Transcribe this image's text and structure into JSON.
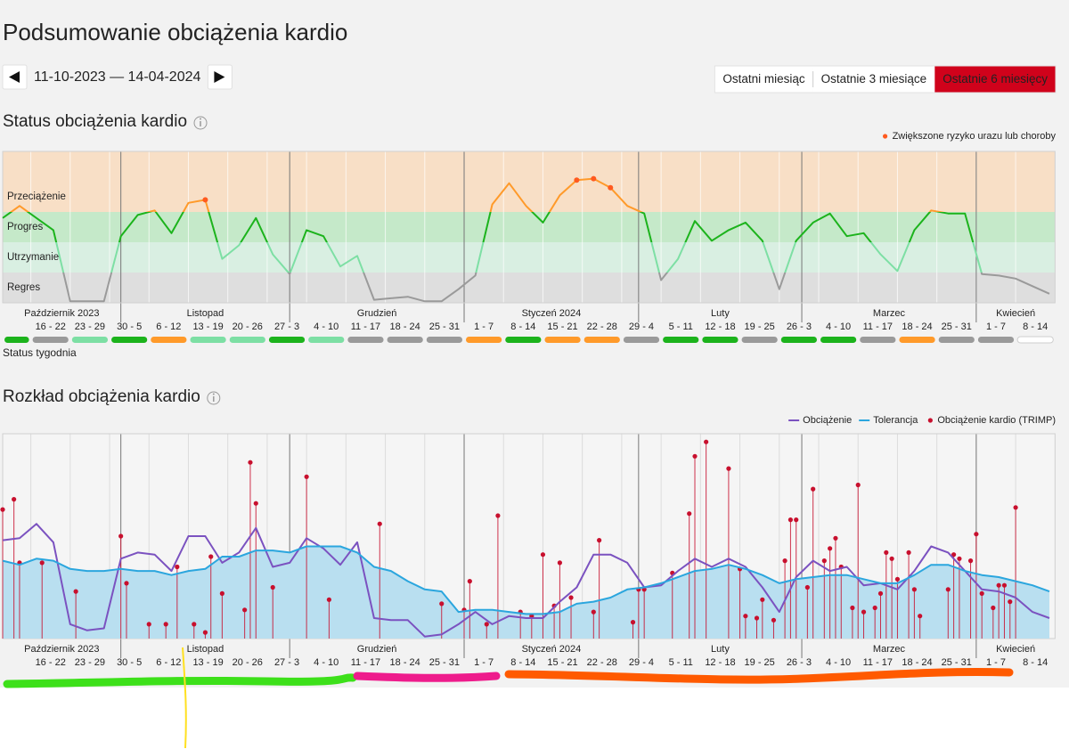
{
  "title": "Podsumowanie obciążenia kardio",
  "date_range": "11-10-2023 — 14-04-2024",
  "range_buttons": [
    "Ostatni miesiąc",
    "Ostatnie 3 miesiące",
    "Ostatnie 6 miesięcy"
  ],
  "active_button": 2,
  "chart_data": [
    {
      "type": "line",
      "title": "Status obciążenia kardio",
      "xlim": [
        "2023-10-11",
        "2024-04-14"
      ],
      "ylim": [
        0,
        100
      ],
      "months": [
        "Październik 2023",
        "Listopad",
        "Grudzień",
        "Styczeń 2024",
        "Luty",
        "Marzec",
        "Kwiecień"
      ],
      "categories": [
        null,
        "16 - 22",
        "23 - 29",
        "30 - 5",
        "6 - 12",
        "13 - 19",
        "20 - 26",
        "27 - 3",
        "4 - 10",
        "11 - 17",
        "18 - 24",
        "25 - 31",
        "1 - 7",
        "8 - 14",
        "15 - 21",
        "22 - 28",
        "29 - 4",
        "5 - 11",
        "12 - 18",
        "19 - 25",
        "26 - 3",
        "4 - 10",
        "11 - 17",
        "18 - 24",
        "25 - 31",
        "1 - 7",
        "8 - 14"
      ],
      "week_status_label": "Status tygodnia",
      "week_status_colors": [
        "#1cb31c",
        "#9a9a9a",
        "#7ddfa4",
        "#1cb31c",
        "#ff9a2a",
        "#7ddfa4",
        "#7ddfa4",
        "#1cb31c",
        "#7ddfa4",
        "#9a9a9a",
        "#9a9a9a",
        "#9a9a9a",
        "#ff9a2a",
        "#1cb31c",
        "#ff9a2a",
        "#ff9a2a",
        "#9a9a9a",
        "#1cb31c",
        "#1cb31c",
        "#9a9a9a",
        "#1cb31c",
        "#1cb31c",
        "#9a9a9a",
        "#ff9a2a",
        "#9a9a9a",
        "#9a9a9a",
        "#ffffff"
      ],
      "bands": [
        {
          "label": "Regres",
          "from": 0,
          "to": 20,
          "color": "#dedede",
          "line_color": "#9a9a9a"
        },
        {
          "label": "Utrzymanie",
          "from": 20,
          "to": 40,
          "color": "#d9efe2",
          "line_color": "#7ddfa4"
        },
        {
          "label": "Progres",
          "from": 40,
          "to": 60,
          "color": "#c5e9c9",
          "line_color": "#1cb31c"
        },
        {
          "label": "Przeciążenie",
          "from": 60,
          "to": 100,
          "color": "#f8dfc6",
          "line_color": "#ff9a2a"
        }
      ],
      "x": [
        "2023-10-11",
        "2023-10-14",
        "2023-10-17",
        "2023-10-20",
        "2023-10-23",
        "2023-10-26",
        "2023-10-29",
        "2023-11-01",
        "2023-11-04",
        "2023-11-07",
        "2023-11-10",
        "2023-11-13",
        "2023-11-16",
        "2023-11-19",
        "2023-11-22",
        "2023-11-25",
        "2023-11-28",
        "2023-12-01",
        "2023-12-04",
        "2023-12-07",
        "2023-12-10",
        "2023-12-13",
        "2023-12-16",
        "2023-12-19",
        "2023-12-22",
        "2023-12-25",
        "2023-12-28",
        "2023-12-31",
        "2024-01-03",
        "2024-01-06",
        "2024-01-09",
        "2024-01-12",
        "2024-01-15",
        "2024-01-18",
        "2024-01-21",
        "2024-01-24",
        "2024-01-27",
        "2024-01-30",
        "2024-02-02",
        "2024-02-05",
        "2024-02-08",
        "2024-02-11",
        "2024-02-14",
        "2024-02-17",
        "2024-02-20",
        "2024-02-23",
        "2024-02-26",
        "2024-02-29",
        "2024-03-03",
        "2024-03-06",
        "2024-03-09",
        "2024-03-12",
        "2024-03-15",
        "2024-03-18",
        "2024-03-21",
        "2024-03-24",
        "2024-03-27",
        "2024-03-30",
        "2024-04-02",
        "2024-04-05",
        "2024-04-08",
        "2024-04-11",
        "2024-04-14"
      ],
      "values": [
        56,
        64,
        56,
        48,
        1,
        1,
        1,
        44,
        58,
        61,
        46,
        66,
        68,
        29,
        38,
        56,
        32,
        19,
        48,
        44,
        24,
        31,
        2,
        3,
        4,
        1,
        1,
        9,
        18,
        65,
        79,
        64,
        53,
        71,
        81,
        82,
        76,
        64,
        59,
        15,
        29,
        54,
        41,
        48,
        53,
        41,
        9,
        41,
        53,
        59,
        44,
        46,
        32,
        21,
        48,
        61,
        59,
        59,
        19,
        18,
        16,
        11,
        6
      ],
      "series": [
        {
          "name": "Zwiększone ryzyko urazu lub choroby",
          "type": "scatter",
          "color": "#ff5a1f",
          "values": [
            null,
            null,
            null,
            null,
            null,
            null,
            null,
            null,
            null,
            null,
            null,
            null,
            68,
            null,
            null,
            null,
            null,
            null,
            null,
            null,
            null,
            null,
            null,
            null,
            null,
            null,
            null,
            null,
            null,
            null,
            null,
            null,
            null,
            null,
            81,
            82,
            76,
            null,
            null,
            null,
            null,
            null,
            null,
            null,
            null,
            null,
            null,
            null,
            null,
            null,
            null,
            null,
            null,
            null,
            null,
            null,
            null,
            null,
            null,
            null,
            null,
            null,
            null
          ]
        }
      ]
    },
    {
      "type": "line",
      "title": "Rozkład obciążenia kardio",
      "xlim": [
        "2023-10-11",
        "2024-04-14"
      ],
      "ylim": [
        0,
        100
      ],
      "months": [
        "Październik 2023",
        "Listopad",
        "Grudzień",
        "Styczeń 2024",
        "Luty",
        "Marzec",
        "Kwiecień"
      ],
      "categories": [
        null,
        "16 - 22",
        "23 - 29",
        "30 - 5",
        "6 - 12",
        "13 - 19",
        "20 - 26",
        "27 - 3",
        "4 - 10",
        "11 - 17",
        "18 - 24",
        "25 - 31",
        "1 - 7",
        "8 - 14",
        "15 - 21",
        "22 - 28",
        "29 - 4",
        "5 - 11",
        "12 - 18",
        "19 - 25",
        "26 - 3",
        "4 - 10",
        "11 - 17",
        "18 - 24",
        "25 - 31",
        "1 - 7",
        "8 - 14"
      ],
      "x": [
        "2023-10-11",
        "2023-10-14",
        "2023-10-17",
        "2023-10-20",
        "2023-10-23",
        "2023-10-26",
        "2023-10-29",
        "2023-11-01",
        "2023-11-04",
        "2023-11-07",
        "2023-11-10",
        "2023-11-13",
        "2023-11-16",
        "2023-11-19",
        "2023-11-22",
        "2023-11-25",
        "2023-11-28",
        "2023-12-01",
        "2023-12-04",
        "2023-12-07",
        "2023-12-10",
        "2023-12-13",
        "2023-12-16",
        "2023-12-19",
        "2023-12-22",
        "2023-12-25",
        "2023-12-28",
        "2023-12-31",
        "2024-01-03",
        "2024-01-06",
        "2024-01-09",
        "2024-01-12",
        "2024-01-15",
        "2024-01-18",
        "2024-01-21",
        "2024-01-24",
        "2024-01-27",
        "2024-01-30",
        "2024-02-02",
        "2024-02-05",
        "2024-02-08",
        "2024-02-11",
        "2024-02-14",
        "2024-02-17",
        "2024-02-20",
        "2024-02-23",
        "2024-02-26",
        "2024-02-29",
        "2024-03-03",
        "2024-03-06",
        "2024-03-09",
        "2024-03-12",
        "2024-03-15",
        "2024-03-18",
        "2024-03-21",
        "2024-03-24",
        "2024-03-27",
        "2024-03-30",
        "2024-04-02",
        "2024-04-05",
        "2024-04-08",
        "2024-04-11",
        "2024-04-14"
      ],
      "series": [
        {
          "name": "Obciążenie",
          "type": "line",
          "color": "#7b52c0",
          "values": [
            48,
            49,
            56,
            47,
            7,
            4,
            5,
            39,
            42,
            41,
            33,
            50,
            50,
            37,
            42,
            54,
            35,
            37,
            49,
            44,
            36,
            47,
            10,
            9,
            9,
            1,
            2,
            7,
            13,
            7,
            11,
            10,
            10,
            18,
            25,
            41,
            41,
            37,
            25,
            26,
            33,
            39,
            35,
            39,
            35,
            25,
            13,
            30,
            38,
            33,
            35,
            26,
            27,
            24,
            33,
            45,
            42,
            33,
            24,
            23,
            20,
            13,
            10
          ]
        },
        {
          "name": "Tolerancja",
          "type": "line",
          "color": "#2ba6de",
          "fill": "#b9dff0",
          "values": [
            38,
            36,
            39,
            38,
            34,
            33,
            33,
            34,
            33,
            33,
            31,
            33,
            34,
            40,
            40,
            43,
            43,
            42,
            45,
            45,
            45,
            42,
            35,
            33,
            28,
            24,
            23,
            13,
            14,
            14,
            13,
            12,
            12,
            13,
            17,
            18,
            20,
            24,
            25,
            27,
            30,
            33,
            34,
            36,
            34,
            31,
            27,
            29,
            30,
            31,
            31,
            29,
            27,
            27,
            31,
            36,
            36,
            33,
            31,
            30,
            28,
            26,
            23
          ]
        },
        {
          "name": "Obciążenie kardio (TRIMP)",
          "type": "stem",
          "color": "#c8102e",
          "x": [
            "2023-10-11",
            "2023-10-13",
            "2023-10-14",
            "2023-10-18",
            "2023-10-24",
            "2023-11-01",
            "2023-11-02",
            "2023-11-06",
            "2023-11-09",
            "2023-11-11",
            "2023-11-14",
            "2023-11-16",
            "2023-11-17",
            "2023-11-19",
            "2023-11-23",
            "2023-11-24",
            "2023-11-25",
            "2023-11-28",
            "2023-12-04",
            "2023-12-08",
            "2023-12-17",
            "2023-12-28",
            "2024-01-01",
            "2024-01-02",
            "2024-01-05",
            "2024-01-07",
            "2024-01-11",
            "2024-01-13",
            "2024-01-15",
            "2024-01-17",
            "2024-01-18",
            "2024-01-20",
            "2024-01-24",
            "2024-01-25",
            "2024-01-31",
            "2024-02-01",
            "2024-02-02",
            "2024-02-07",
            "2024-02-10",
            "2024-02-11",
            "2024-02-13",
            "2024-02-17",
            "2024-02-19",
            "2024-02-20",
            "2024-02-22",
            "2024-02-23",
            "2024-02-25",
            "2024-02-27",
            "2024-02-28",
            "2024-02-29",
            "2024-03-02",
            "2024-03-03",
            "2024-03-05",
            "2024-03-06",
            "2024-03-07",
            "2024-03-08",
            "2024-03-10",
            "2024-03-11",
            "2024-03-12",
            "2024-03-14",
            "2024-03-15",
            "2024-03-16",
            "2024-03-17",
            "2024-03-18",
            "2024-03-20",
            "2024-03-21",
            "2024-03-22",
            "2024-03-27",
            "2024-03-28",
            "2024-03-29",
            "2024-03-31",
            "2024-04-01",
            "2024-04-02",
            "2024-04-04",
            "2024-04-05",
            "2024-04-06",
            "2024-04-07",
            "2024-04-08"
          ],
          "values": [
            63,
            68,
            37,
            37,
            23,
            50,
            27,
            7,
            7,
            35,
            7,
            3,
            40,
            22,
            14,
            86,
            66,
            25,
            79,
            19,
            56,
            17,
            14,
            28,
            7,
            60,
            13,
            11,
            41,
            16,
            37,
            20,
            13,
            48,
            8,
            24,
            24,
            32,
            61,
            89,
            96,
            83,
            34,
            11,
            10,
            19,
            9,
            38,
            58,
            58,
            25,
            73,
            38,
            44,
            49,
            35,
            15,
            75,
            13,
            15,
            22,
            42,
            39,
            29,
            42,
            24,
            11,
            24,
            41,
            39,
            38,
            51,
            22,
            15,
            26,
            26,
            18,
            64
          ]
        }
      ]
    }
  ]
}
